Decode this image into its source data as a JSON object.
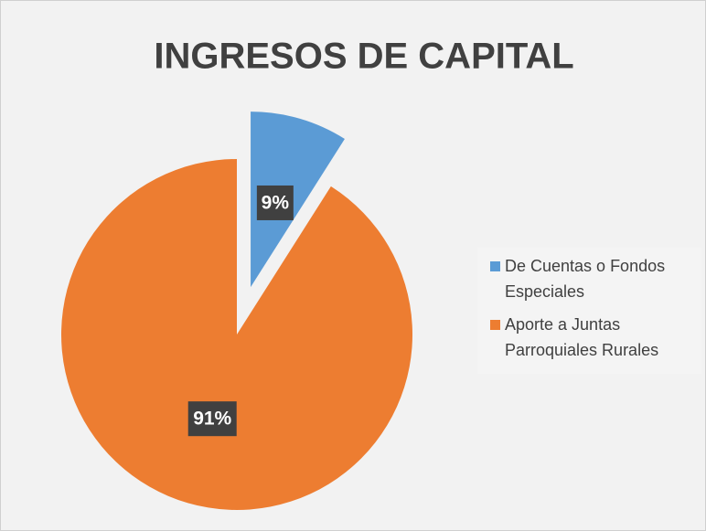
{
  "chart_data": {
    "type": "pie",
    "title": "INGRESOS DE CAPITAL",
    "categories": [
      "De Cuentas o Fondos Especiales",
      "Aporte a Juntas Parroquiales Rurales"
    ],
    "values": [
      9,
      91
    ],
    "value_labels": [
      "9%",
      "91%"
    ],
    "colors": [
      "#5b9bd5",
      "#ed7d31"
    ],
    "exploded": [
      true,
      false
    ],
    "legend": "right"
  }
}
